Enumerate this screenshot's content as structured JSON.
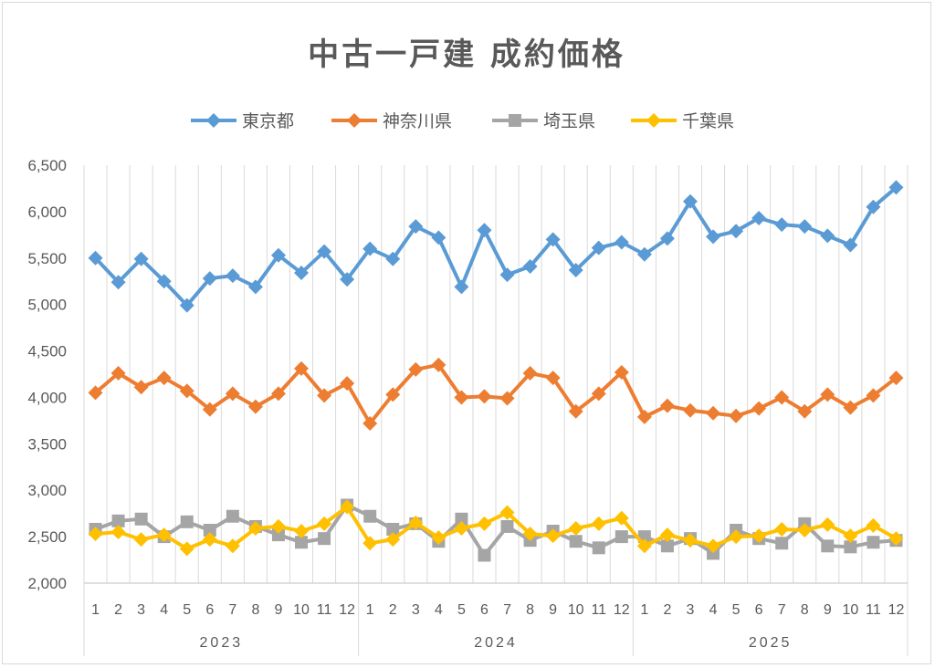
{
  "chart_data": {
    "type": "line",
    "title": "中古一戸建 成約価格",
    "xlabel": "",
    "ylabel": "",
    "ylim": [
      2000,
      6500
    ],
    "ytick_labels": [
      "2,000",
      "2,500",
      "3,000",
      "3,500",
      "4,000",
      "4,500",
      "5,000",
      "5,500",
      "6,000",
      "6,500"
    ],
    "month_labels": [
      "1",
      "2",
      "3",
      "4",
      "5",
      "6",
      "7",
      "8",
      "9",
      "10",
      "11",
      "12"
    ],
    "years": [
      "2023",
      "2024",
      "2025"
    ],
    "grid": true,
    "legend_position": "top",
    "series": [
      {
        "name": "東京都",
        "color": "#5b9bd5",
        "marker": "diamond",
        "values": [
          5500,
          5240,
          5490,
          5250,
          4990,
          5280,
          5310,
          5190,
          5530,
          5340,
          5570,
          5270,
          5600,
          5490,
          5840,
          5720,
          5190,
          5800,
          5320,
          5410,
          5700,
          5370,
          5610,
          5670,
          5540,
          5710,
          6110,
          5730,
          5790,
          5930,
          5860,
          5840,
          5740,
          5640,
          6050,
          6260
        ]
      },
      {
        "name": "神奈川県",
        "color": "#ed7d31",
        "marker": "diamond",
        "values": [
          4050,
          4260,
          4110,
          4210,
          4070,
          3870,
          4040,
          3900,
          4040,
          4310,
          4020,
          4150,
          3720,
          4030,
          4300,
          4350,
          4000,
          4010,
          3990,
          4260,
          4210,
          3850,
          4040,
          4270,
          3790,
          3910,
          3860,
          3830,
          3800,
          3880,
          4000,
          3850,
          4030,
          3890,
          4020,
          4210
        ]
      },
      {
        "name": "埼玉県",
        "color": "#a5a5a5",
        "marker": "square",
        "values": [
          2580,
          2670,
          2690,
          2500,
          2660,
          2570,
          2720,
          2610,
          2520,
          2440,
          2480,
          2840,
          2720,
          2580,
          2640,
          2450,
          2690,
          2300,
          2610,
          2460,
          2560,
          2450,
          2380,
          2500,
          2500,
          2400,
          2480,
          2320,
          2570,
          2480,
          2430,
          2640,
          2400,
          2390,
          2440,
          2460
        ]
      },
      {
        "name": "千葉県",
        "color": "#ffc000",
        "marker": "diamond",
        "values": [
          2530,
          2550,
          2470,
          2520,
          2370,
          2470,
          2400,
          2590,
          2610,
          2560,
          2640,
          2820,
          2430,
          2470,
          2650,
          2490,
          2590,
          2640,
          2760,
          2530,
          2510,
          2590,
          2640,
          2700,
          2400,
          2520,
          2460,
          2400,
          2500,
          2510,
          2580,
          2570,
          2630,
          2510,
          2620,
          2480
        ]
      }
    ]
  }
}
